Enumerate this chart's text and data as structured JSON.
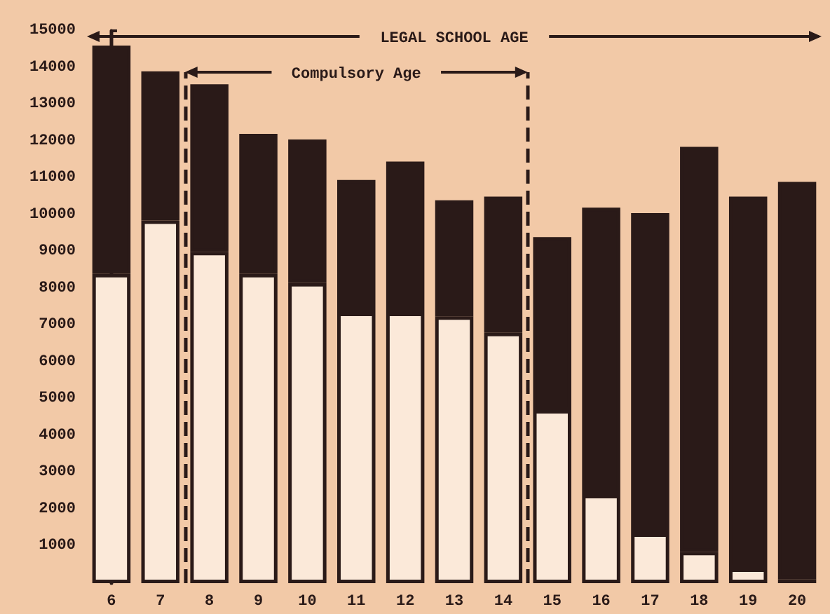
{
  "chart_data": {
    "type": "bar",
    "stacked": true,
    "categories": [
      "6",
      "7",
      "8",
      "9",
      "10",
      "11",
      "12",
      "13",
      "14",
      "15",
      "16",
      "17",
      "18",
      "19",
      "20"
    ],
    "series": [
      {
        "color": "#fbe9d9",
        "values": [
          8400,
          9850,
          9000,
          8400,
          8150,
          7350,
          7350,
          7250,
          6800,
          4700,
          2400,
          1350,
          850,
          400,
          100
        ]
      },
      {
        "color": "#2a1a18",
        "values": [
          6200,
          4050,
          4550,
          3800,
          3900,
          3600,
          4100,
          3150,
          3700,
          4700,
          7800,
          8700,
          11000,
          10100,
          10800
        ]
      }
    ],
    "ylim": [
      0,
      15000
    ],
    "yticks": [
      1000,
      2000,
      3000,
      4000,
      5000,
      6000,
      7000,
      8000,
      9000,
      10000,
      11000,
      12000,
      13000,
      14000,
      15000
    ],
    "annotations": [
      "LEGAL SCHOOL AGE",
      "Compulsory Age"
    ],
    "grid": false
  }
}
